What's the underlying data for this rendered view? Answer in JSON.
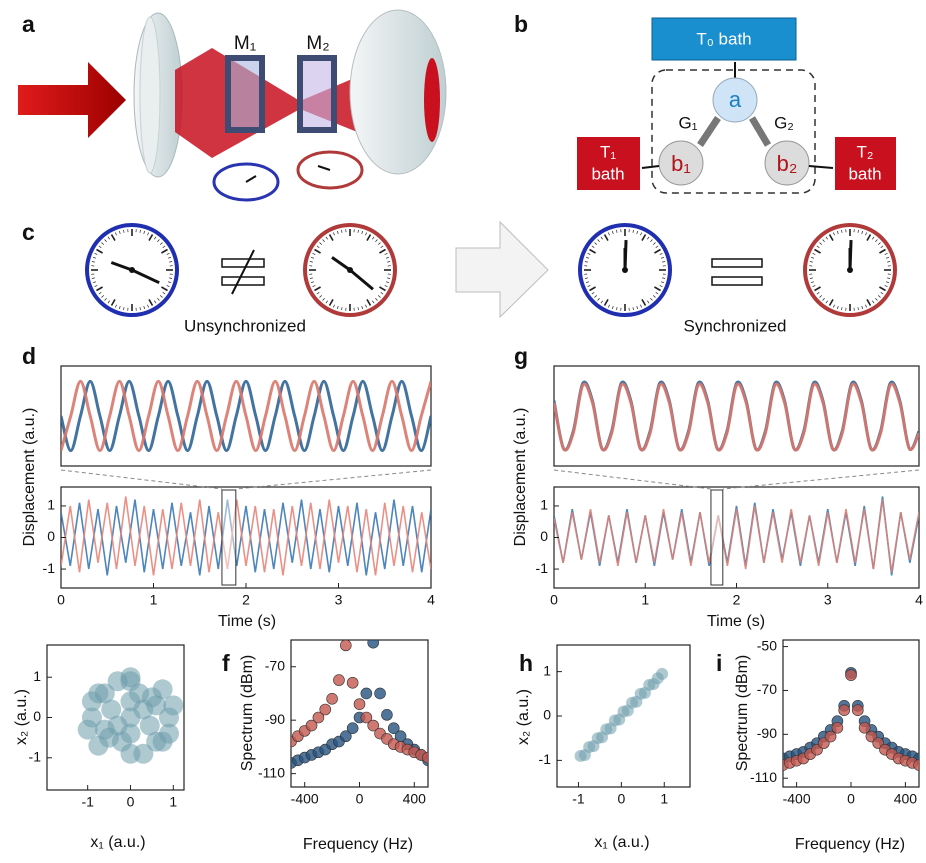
{
  "diagram": {
    "a": {
      "label": "a",
      "mirror_1": "M₁",
      "mirror_2": "M₂"
    },
    "b": {
      "label": "b",
      "t0_bath": "T₀ bath",
      "node_a": "a",
      "node_b1": "b₁",
      "node_b2": "b₂",
      "g1": "G₁",
      "g2": "G₂",
      "t1_bath": [
        "T₁",
        "bath"
      ],
      "t2_bath": [
        "T₂",
        "bath"
      ]
    },
    "c": {
      "label": "c",
      "left_caption": "Unsynchronized",
      "right_caption": "Synchronized"
    }
  },
  "chart_data": [
    {
      "type": "line",
      "label": "d",
      "smooth": true,
      "ylim": [
        -1.3,
        1.3
      ],
      "series": [
        {
          "color": "#2f6496",
          "values": [
            0,
            -0.9,
            0,
            0.9,
            0,
            -0.9,
            0,
            0.9,
            0,
            -0.9,
            0,
            0.9,
            0,
            -0.9,
            0,
            0.9,
            0,
            -0.9,
            0,
            0.9,
            0,
            -0.9,
            0,
            0.9,
            0,
            -0.9,
            0,
            0.9,
            0,
            -0.9,
            0,
            0.9,
            0,
            -0.9,
            0,
            0.9,
            0,
            -0.9,
            0
          ]
        },
        {
          "color": "#d9776c",
          "values": [
            -0.9,
            0,
            0.9,
            0,
            -0.9,
            0,
            0.9,
            0,
            -0.9,
            0,
            0.9,
            0,
            -0.9,
            0,
            0.9,
            0,
            -0.9,
            0,
            0.9,
            0,
            -0.9,
            0,
            0.9,
            0,
            -0.9,
            0,
            0.9,
            0,
            -0.9,
            0,
            0.9,
            0,
            -0.9,
            0,
            0.9,
            0,
            -0.9,
            0,
            0.9
          ]
        }
      ]
    },
    {
      "type": "line",
      "x_label": "Time (s)",
      "y_label": "Displacement (a.u.)",
      "x": [
        0,
        0.1,
        0.2,
        0.3,
        0.4,
        0.5,
        0.6,
        0.7,
        0.8,
        0.9,
        1,
        1.1,
        1.2,
        1.3,
        1.4,
        1.5,
        1.6,
        1.7,
        1.8,
        1.9,
        2,
        2.1,
        2.2,
        2.3,
        2.4,
        2.5,
        2.6,
        2.7,
        2.8,
        2.9,
        3,
        3.1,
        3.2,
        3.3,
        3.4,
        3.5,
        3.6,
        3.7,
        3.8,
        3.9,
        4
      ],
      "xlim": [
        0,
        4
      ],
      "xticks": [
        0,
        1,
        2,
        3,
        4
      ],
      "ylim": [
        -1.6,
        1.6
      ],
      "yticks": [
        -1,
        0,
        1
      ],
      "zoom_window": [
        1.74,
        1.89
      ],
      "series": [
        {
          "color": "#3a78b5",
          "values": [
            0.8,
            -0.9,
            1.1,
            -1.0,
            0.9,
            -1.2,
            1.0,
            -0.8,
            1.2,
            -1.1,
            0.9,
            -1.0,
            1.1,
            -0.9,
            0.8,
            -1.2,
            1.0,
            -1.0,
            1.2,
            -0.9,
            1.0,
            -1.1,
            0.9,
            -1.0,
            1.1,
            -0.8,
            1.2,
            -1.0,
            0.9,
            -1.1,
            1.0,
            -0.9,
            1.1,
            -1.2,
            0.8,
            -1.0,
            1.2,
            -0.9,
            1.0,
            -1.1,
            0.9
          ]
        },
        {
          "color": "#e8857a",
          "values": [
            -0.9,
            1.0,
            -1.1,
            1.2,
            -0.8,
            1.1,
            -1.0,
            1.3,
            -0.9,
            1.0,
            -1.2,
            0.9,
            -1.0,
            1.1,
            -0.9,
            1.2,
            -1.1,
            0.8,
            -1.0,
            1.2,
            -0.9,
            1.0,
            -1.1,
            0.9,
            -1.2,
            1.0,
            -0.9,
            1.1,
            -1.0,
            1.2,
            -0.8,
            1.0,
            -1.1,
            0.9,
            -1.2,
            1.1,
            -0.9,
            1.0,
            -1.1,
            0.8,
            -1.0
          ]
        }
      ]
    },
    {
      "type": "scatter",
      "x_label": "x₁ (a.u.)",
      "y_label": "x₂ (a.u.)",
      "xlim": [
        -1.95,
        1.25
      ],
      "xticks": [
        -1,
        0,
        1
      ],
      "ylim": [
        -1.8,
        1.8
      ],
      "yticks": [
        -1,
        0,
        1
      ],
      "series": [
        {
          "color": "#6e9dab",
          "x": [
            0,
            0.5,
            -0.5,
            0.9,
            -0.9,
            0,
            0,
            0.6,
            -0.6,
            0.6,
            -0.6,
            0.3,
            -0.3,
            0.3,
            -0.3,
            1.0,
            -1.0,
            0,
            0,
            0.75,
            -0.75,
            0.75,
            -0.75,
            0.2,
            -0.2,
            0.45,
            -0.45,
            0.9,
            -0.9,
            0
          ],
          "values": [
            0,
            0.5,
            -0.5,
            0,
            0,
            0.9,
            -0.9,
            -0.6,
            0.6,
            0.3,
            -0.3,
            -0.9,
            0.9,
            0.2,
            -0.2,
            0.3,
            -0.3,
            0.4,
            -0.4,
            0.7,
            -0.7,
            -0.6,
            0.6,
            0.6,
            -0.6,
            -0.2,
            0.2,
            -0.4,
            0.4,
            1.0
          ]
        }
      ]
    },
    {
      "type": "scatter",
      "label": "f",
      "x_label": "Frequency (Hz)",
      "y_label": "Spectrum (dBm)",
      "x": [
        -500,
        -450,
        -400,
        -350,
        -300,
        -250,
        -200,
        -150,
        -100,
        -50,
        0,
        50,
        100,
        150,
        200,
        250,
        300,
        350,
        400,
        450,
        500
      ],
      "xlim": [
        -500,
        500
      ],
      "xticks": [
        -400,
        0,
        400
      ],
      "ylim": [
        -115,
        -60
      ],
      "yticks": [
        -110,
        -90,
        -70
      ],
      "series": [
        {
          "color": "#24527f",
          "values": [
            -106,
            -105,
            -104,
            -103,
            -102,
            -101,
            -99,
            -98,
            -96,
            -93,
            -89,
            -80,
            -61,
            -80,
            -88,
            -93,
            -96,
            -99,
            -101,
            -103,
            -105
          ]
        },
        {
          "color": "#c4574f",
          "values": [
            -98,
            -96,
            -94,
            -92,
            -89,
            -86,
            -82,
            -75,
            -62,
            -76,
            -84,
            -89,
            -92,
            -95,
            -97,
            -99,
            -100,
            -101,
            -102,
            -103,
            -104
          ]
        }
      ]
    },
    {
      "type": "line",
      "label": "g",
      "smooth": true,
      "ylim": [
        -1.3,
        1.3
      ],
      "series": [
        {
          "color": "#2f6496",
          "values": [
            0.4,
            -0.85,
            -0.4,
            0.85,
            0.4,
            -0.85,
            -0.4,
            0.85,
            0.4,
            -0.85,
            -0.4,
            0.85,
            0.4,
            -0.85,
            -0.4,
            0.85,
            0.4,
            -0.85,
            -0.4,
            0.85,
            0.4,
            -0.85,
            -0.4,
            0.85,
            0.4,
            -0.85,
            -0.4,
            0.85,
            0.4,
            -0.85,
            -0.4,
            0.85,
            0.4,
            -0.85,
            -0.4,
            0.85,
            0.4,
            -0.85,
            -0.4
          ]
        },
        {
          "color": "#d9776c",
          "values": [
            0.35,
            -0.85,
            -0.45,
            0.8,
            0.35,
            -0.85,
            -0.45,
            0.8,
            0.35,
            -0.85,
            -0.45,
            0.8,
            0.35,
            -0.85,
            -0.45,
            0.8,
            0.35,
            -0.85,
            -0.45,
            0.8,
            0.35,
            -0.85,
            -0.45,
            0.8,
            0.35,
            -0.85,
            -0.45,
            0.8,
            0.35,
            -0.85,
            -0.45,
            0.8,
            0.35,
            -0.85,
            -0.45,
            0.8,
            0.35,
            -0.85,
            -0.45
          ]
        }
      ]
    },
    {
      "type": "line",
      "x_label": "Time (s)",
      "y_label": "Displacement (a.u.)",
      "x": [
        0,
        0.1,
        0.2,
        0.3,
        0.4,
        0.5,
        0.6,
        0.7,
        0.8,
        0.9,
        1,
        1.1,
        1.2,
        1.3,
        1.4,
        1.5,
        1.6,
        1.7,
        1.8,
        1.9,
        2,
        2.1,
        2.2,
        2.3,
        2.4,
        2.5,
        2.6,
        2.7,
        2.8,
        2.9,
        3,
        3.1,
        3.2,
        3.3,
        3.4,
        3.5,
        3.6,
        3.7,
        3.8,
        3.9,
        4
      ],
      "xlim": [
        0,
        4
      ],
      "xticks": [
        0,
        1,
        2,
        3,
        4
      ],
      "ylim": [
        -1.6,
        1.6
      ],
      "yticks": [
        -1,
        0,
        1
      ],
      "zoom_window": [
        1.72,
        1.85
      ],
      "series": [
        {
          "color": "#3a78b5",
          "values": [
            0.7,
            -0.8,
            0.9,
            -0.7,
            0.8,
            -0.9,
            0.7,
            -0.8,
            0.9,
            -0.8,
            0.7,
            -0.9,
            0.8,
            -0.7,
            0.9,
            -0.8,
            0.8,
            -0.9,
            0.7,
            -0.8,
            1.0,
            -0.9,
            1.1,
            -0.8,
            0.9,
            -0.7,
            0.8,
            -0.9,
            0.7,
            -0.8,
            0.9,
            -0.8,
            0.8,
            -0.9,
            1.0,
            -1.0,
            1.3,
            -1.2,
            0.8,
            -0.8,
            0.7
          ]
        },
        {
          "color": "#d98278",
          "values": [
            0.6,
            -0.8,
            0.8,
            -0.7,
            0.9,
            -0.8,
            0.7,
            -0.9,
            0.8,
            -0.8,
            0.7,
            -0.8,
            0.9,
            -0.7,
            0.8,
            -0.9,
            0.8,
            -0.8,
            0.7,
            -0.9,
            0.9,
            -1.0,
            1.0,
            -0.8,
            0.8,
            -0.8,
            0.9,
            -0.8,
            0.7,
            -0.9,
            0.8,
            -0.8,
            0.9,
            -0.8,
            0.9,
            -1.0,
            1.2,
            -1.1,
            0.8,
            -0.7,
            0.8
          ]
        }
      ]
    },
    {
      "type": "scatter",
      "label": "h",
      "x_label": "x₁ (a.u.)",
      "y_label": "x₂ (a.u.)",
      "xlim": [
        -1.5,
        1.6
      ],
      "xticks": [
        -1,
        0,
        1
      ],
      "ylim": [
        -1.6,
        1.6
      ],
      "yticks": [
        -1,
        0,
        1
      ],
      "series": [
        {
          "color": "#6e9dab",
          "x": [
            -0.95,
            -0.85,
            -0.75,
            -0.65,
            -0.55,
            -0.45,
            -0.35,
            -0.25,
            -0.15,
            -0.05,
            0.05,
            0.15,
            0.25,
            0.35,
            0.45,
            0.55,
            0.65,
            0.75,
            0.85,
            0.95
          ],
          "values": [
            -0.9,
            -0.88,
            -0.7,
            -0.68,
            -0.5,
            -0.48,
            -0.3,
            -0.28,
            -0.1,
            -0.08,
            0.1,
            0.12,
            0.3,
            0.32,
            0.5,
            0.52,
            0.7,
            0.72,
            0.85,
            0.95
          ]
        }
      ]
    },
    {
      "type": "scatter",
      "label": "i",
      "x_label": "Frequency (Hz)",
      "y_label": "Spectrum (dBm)",
      "x": [
        -500,
        -450,
        -400,
        -350,
        -300,
        -250,
        -200,
        -150,
        -100,
        -50,
        0,
        50,
        100,
        150,
        200,
        250,
        300,
        350,
        400,
        450,
        500
      ],
      "xlim": [
        -500,
        500
      ],
      "xticks": [
        -400,
        0,
        400
      ],
      "ylim": [
        -114,
        -47
      ],
      "yticks": [
        -110,
        -90,
        -70,
        -50
      ],
      "series": [
        {
          "color": "#24527f",
          "values": [
            -101,
            -100,
            -99,
            -98,
            -96,
            -94,
            -91,
            -88,
            -84,
            -77,
            -62,
            -77,
            -84,
            -88,
            -91,
            -94,
            -96,
            -98,
            -99,
            -100,
            -101
          ]
        },
        {
          "color": "#c4574f",
          "values": [
            -104,
            -103,
            -102,
            -101,
            -99,
            -97,
            -94,
            -91,
            -87,
            -79,
            -63,
            -79,
            -87,
            -91,
            -94,
            -97,
            -99,
            -101,
            -102,
            -103,
            -104
          ]
        }
      ]
    }
  ]
}
